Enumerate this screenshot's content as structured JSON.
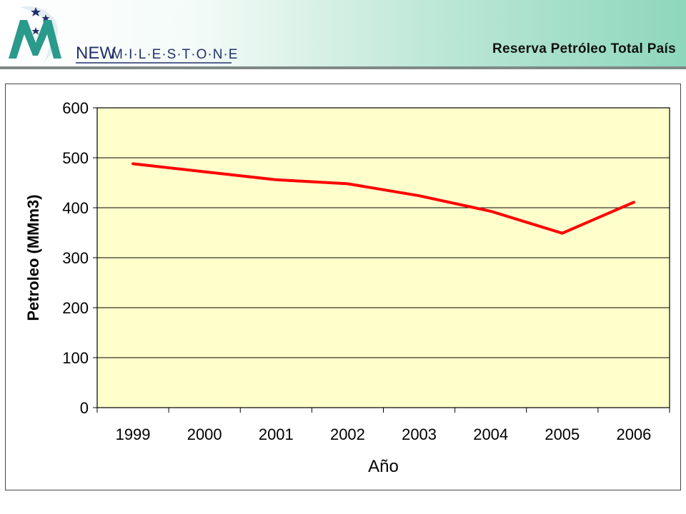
{
  "header": {
    "title": "Reserva Petróleo Total País",
    "logo_text_new": "NEW",
    "logo_text_milestone": "M·I·L·E·S·T·O·N·E"
  },
  "colors": {
    "plot_bg": "#ffffcc",
    "line": "#ff0000",
    "grid": "#000000",
    "logo_teal": "#2a9a8c",
    "logo_navy": "#22306a"
  },
  "chart_data": {
    "type": "line",
    "title": "",
    "xlabel": "Año",
    "ylabel": "Petroleo (MMm3)",
    "categories": [
      "1999",
      "2000",
      "2001",
      "2002",
      "2003",
      "2004",
      "2005",
      "2006"
    ],
    "series": [
      {
        "values": [
          488,
          472,
          456,
          448,
          424,
          393,
          349,
          411
        ]
      }
    ],
    "ylim": [
      0,
      600
    ],
    "yticks": [
      "0",
      "100",
      "200",
      "300",
      "400",
      "500",
      "600"
    ],
    "grid": true,
    "legend": "none"
  }
}
